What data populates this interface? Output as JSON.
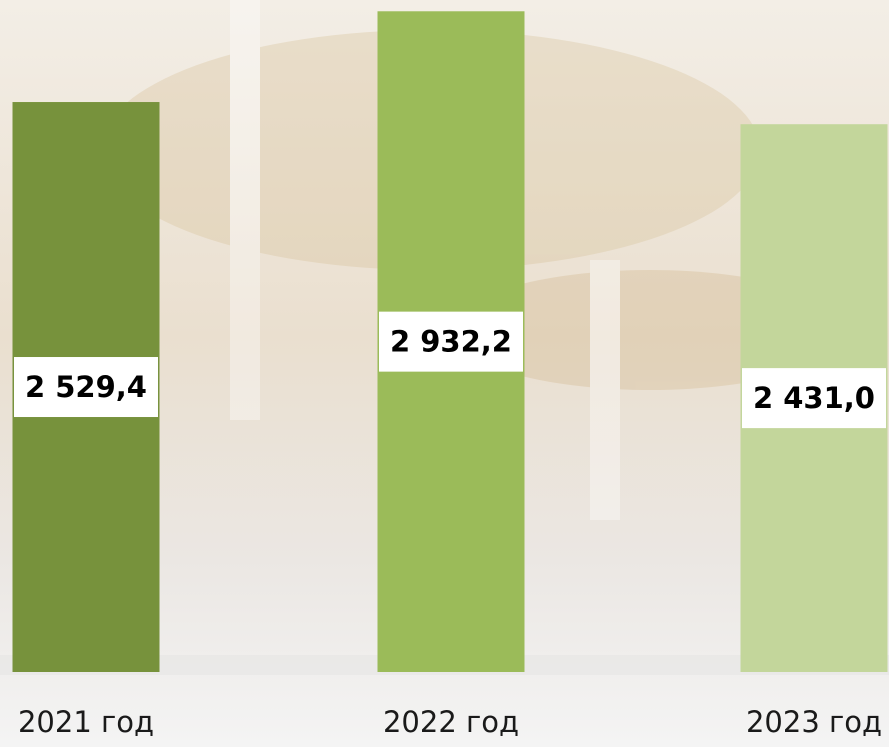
{
  "chart_data": {
    "type": "bar",
    "categories": [
      "2021 год",
      "2022 год",
      "2023 год"
    ],
    "values": [
      2529.4,
      2932.2,
      2431.0
    ],
    "value_labels": [
      "2 529,4",
      "2 932,2",
      "2 431,0"
    ],
    "colors": [
      "#77923c",
      "#9bbb59",
      "#c3d69b"
    ],
    "ylim": [
      0,
      3000
    ]
  }
}
